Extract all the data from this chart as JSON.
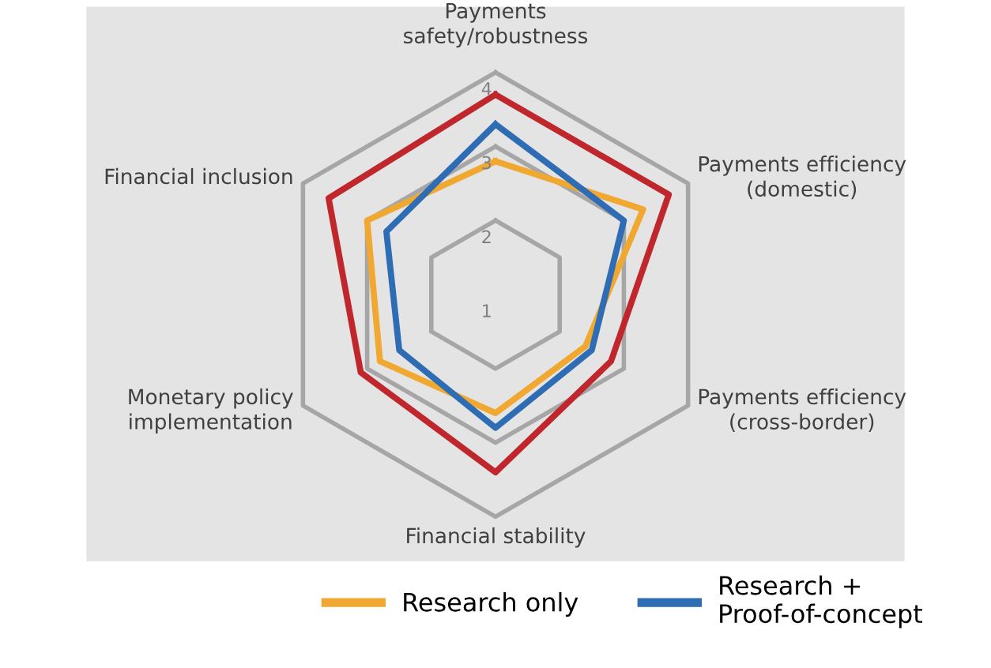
{
  "chart_data": {
    "type": "radar",
    "categories": [
      "Payments safety/robustness",
      "Payments efficiency (domestic)",
      "Payments efficiency (cross-border)",
      "Financial stability",
      "Monetary policy implementation",
      "Financial inclusion"
    ],
    "ylim": [
      1,
      4
    ],
    "yticks": [
      1,
      2,
      3,
      4
    ],
    "grid": true,
    "legend": "bottom",
    "marker": "none",
    "series": [
      {
        "color": "#c0272d",
        "values": [
          3.7,
          3.7,
          2.8,
          3.4,
          3.1,
          3.6
        ]
      },
      {
        "name": "Research only",
        "color": "#f0a830",
        "values": [
          2.8,
          3.3,
          2.4,
          2.6,
          2.8,
          3.0
        ]
      },
      {
        "name": "Research + Proof-of-concept",
        "color": "#2e6db4",
        "values": [
          3.3,
          3.0,
          2.5,
          2.8,
          2.5,
          2.7
        ]
      }
    ]
  }
}
